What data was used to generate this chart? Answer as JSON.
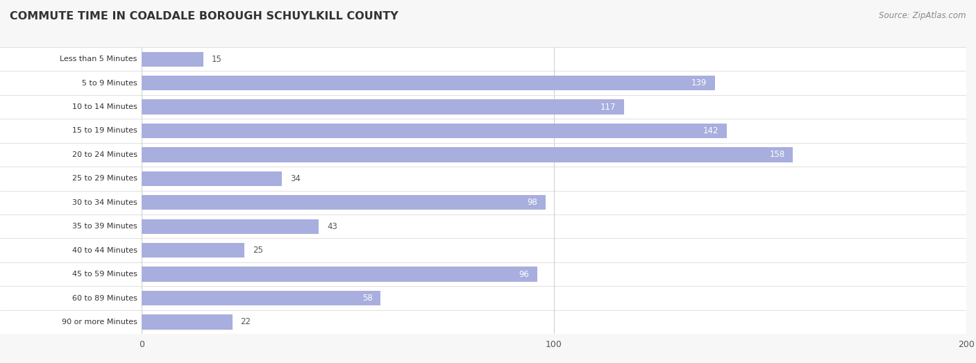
{
  "title": "COMMUTE TIME IN COALDALE BOROUGH SCHUYLKILL COUNTY",
  "source": "Source: ZipAtlas.com",
  "categories": [
    "Less than 5 Minutes",
    "5 to 9 Minutes",
    "10 to 14 Minutes",
    "15 to 19 Minutes",
    "20 to 24 Minutes",
    "25 to 29 Minutes",
    "30 to 34 Minutes",
    "35 to 39 Minutes",
    "40 to 44 Minutes",
    "45 to 59 Minutes",
    "60 to 89 Minutes",
    "90 or more Minutes"
  ],
  "values": [
    15,
    139,
    117,
    142,
    158,
    34,
    98,
    43,
    25,
    96,
    58,
    22
  ],
  "xlim": [
    0,
    200
  ],
  "xticks": [
    0,
    100,
    200
  ],
  "bar_color": "#a8aedd",
  "label_color_inside": "#ffffff",
  "label_color_outside": "#555555",
  "bg_color": "#f7f7f7",
  "bar_bg_color": "#ffffff",
  "row_sep_color": "#e0e0e0",
  "grid_color": "#cccccc",
  "title_fontsize": 11.5,
  "source_fontsize": 8.5,
  "value_fontsize": 8.5,
  "tick_fontsize": 9,
  "category_fontsize": 8.0,
  "bar_height": 0.62,
  "inside_label_threshold": 50
}
